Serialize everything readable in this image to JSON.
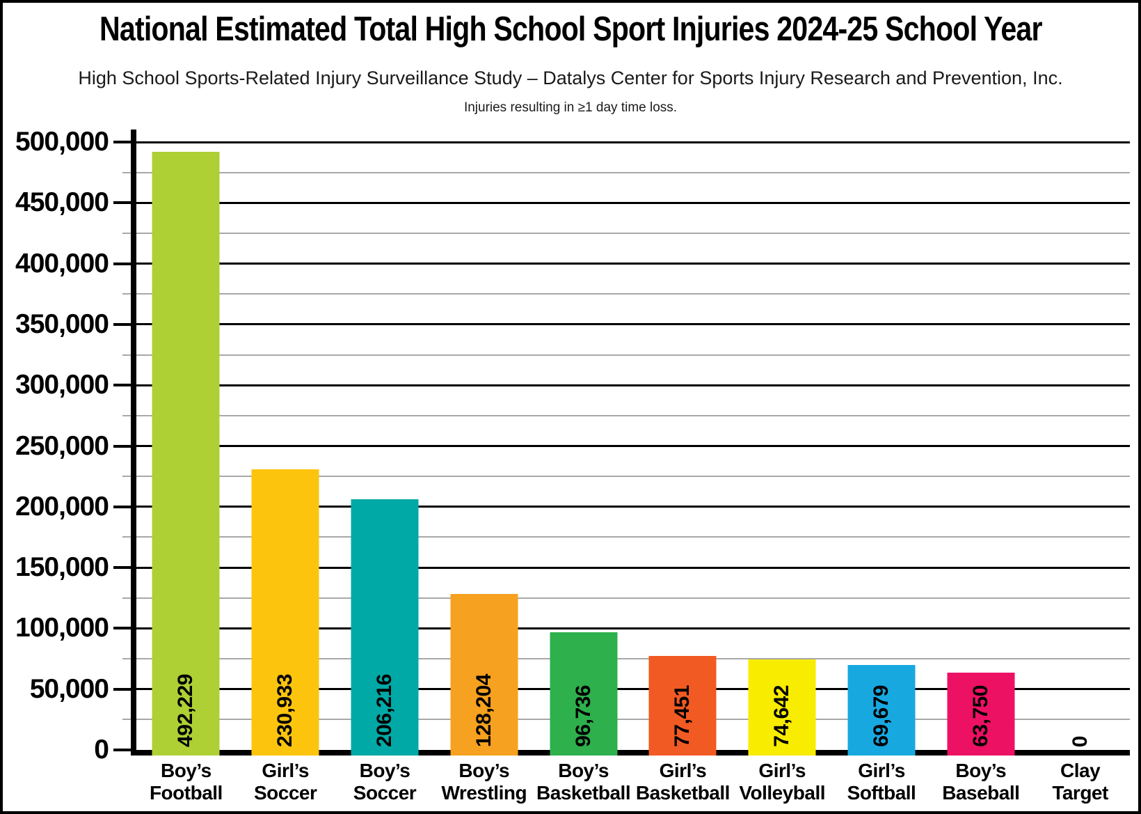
{
  "page": {
    "title": "National Estimated Total High School Sport Injuries 2024-25 School Year",
    "subtitle": "High School Sports-Related Injury Surveillance Study – Datalys Center for Sports Injury Research and Prevention, Inc.",
    "note": "Injuries resulting in ≥1 day time loss."
  },
  "chart_data": {
    "type": "bar",
    "title": "National Estimated Total High School Sport Injuries 2024-25 School Year",
    "subtitle": "High School Sports-Related Injury Surveillance Study – Datalys Center for Sports Injury Research and Prevention, Inc.",
    "annotation": "Injuries resulting in ≥1 day time loss.",
    "xlabel": "",
    "ylabel": "",
    "ylim": [
      0,
      500000
    ],
    "major_step": 50000,
    "minor_step": 25000,
    "grid": "major black lines every 50,000 with minor gray lines every 25,000",
    "legend_position": "none",
    "y_tick_labels": [
      "0",
      "50,000",
      "100,000",
      "150,000",
      "200,000",
      "250,000",
      "300,000",
      "350,000",
      "400,000",
      "450,000",
      "500,000"
    ],
    "categories": [
      "Boy’s Football",
      "Girl’s Soccer",
      "Boy’s Soccer",
      "Boy’s Wrestling",
      "Boy’s Basketball",
      "Girl’s Basketball",
      "Girl’s Volleyball",
      "Girl’s Softball",
      "Boy’s Baseball",
      "Clay Target"
    ],
    "category_lines": [
      [
        "Boy’s",
        "Football"
      ],
      [
        "Girl’s",
        "Soccer"
      ],
      [
        "Boy’s",
        "Soccer"
      ],
      [
        "Boy’s",
        "Wrestling"
      ],
      [
        "Boy’s",
        "Basketball"
      ],
      [
        "Girl’s",
        "Basketball"
      ],
      [
        "Girl’s",
        "Volleyball"
      ],
      [
        "Girl’s",
        "Softball"
      ],
      [
        "Boy’s",
        "Baseball"
      ],
      [
        "Clay",
        "Target"
      ]
    ],
    "values": [
      492229,
      230933,
      206216,
      128204,
      96736,
      77451,
      74642,
      69679,
      63750,
      0
    ],
    "value_labels": [
      "492,229",
      "230,933",
      "206,216",
      "128,204",
      "96,736",
      "77,451",
      "74,642",
      "69,679",
      "63,750",
      "0"
    ],
    "colors": [
      "#aed035",
      "#fcc40d",
      "#00a9a6",
      "#f6a11f",
      "#2eb04d",
      "#f15a22",
      "#f8ec00",
      "#18a8e0",
      "#ed1164",
      "#ffffff"
    ],
    "grid_major_color": "#000000",
    "grid_minor_color": "#a8a8a8"
  }
}
